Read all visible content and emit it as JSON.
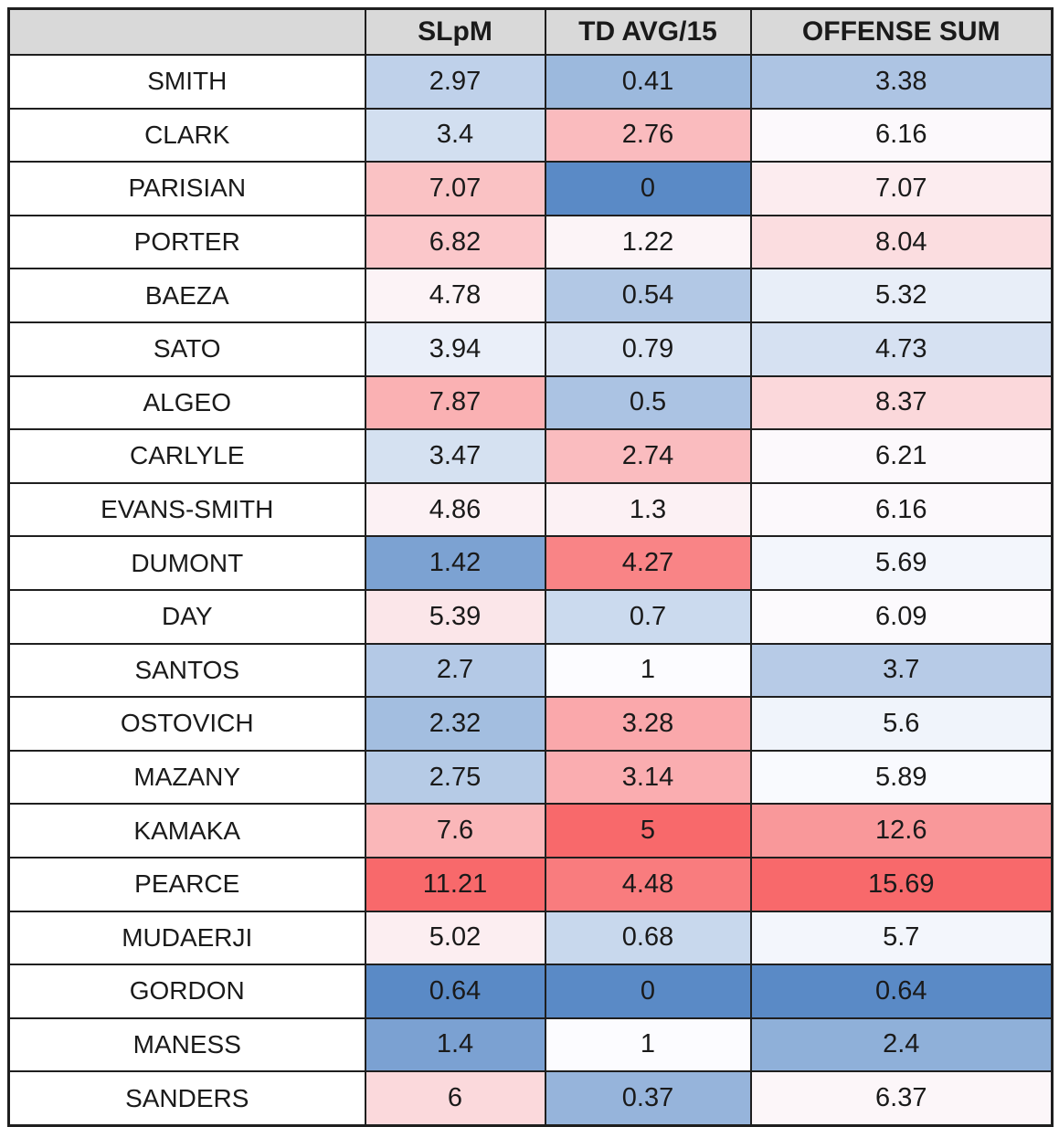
{
  "page": {
    "background": "#ffffff",
    "text_color": "#1a1a1a",
    "border_color": "#1f1f1f",
    "header_bg": "#d9d9d9"
  },
  "table": {
    "corner_label": ""
  },
  "chart_data": {
    "type": "table",
    "title": "",
    "columns": [
      "SLpM",
      "TD AVG/15",
      "OFFENSE SUM"
    ],
    "grid": "all black borders",
    "legend": "off",
    "color_scale": {
      "style": "3-color scale applied per column",
      "min_color": "#5A8AC6",
      "mid_color": "#FCFCFF",
      "max_color": "#F8696B"
    },
    "rows": [
      {
        "label": "SMITH",
        "values": [
          2.97,
          0.41,
          3.38
        ],
        "cell_colors": [
          "#BFD1EA",
          "#9CB9DD",
          "#ADC4E3"
        ]
      },
      {
        "label": "CLARK",
        "values": [
          3.4,
          2.76,
          6.16
        ],
        "cell_colors": [
          "#D2DFF0",
          "#FABBBE",
          "#FCF9FC"
        ]
      },
      {
        "label": "PARISIAN",
        "values": [
          7.07,
          0,
          7.07
        ],
        "cell_colors": [
          "#FAC2C4",
          "#5A8AC6",
          "#FCECEF"
        ]
      },
      {
        "label": "PORTER",
        "values": [
          6.82,
          1.22,
          8.04
        ],
        "cell_colors": [
          "#FBC7CA",
          "#FCF4F7",
          "#FBDDE0"
        ]
      },
      {
        "label": "BAEZA",
        "values": [
          4.78,
          0.54,
          5.32
        ],
        "cell_colors": [
          "#FCF3F6",
          "#B2C8E5",
          "#E8EEF8"
        ]
      },
      {
        "label": "SATO",
        "values": [
          3.94,
          0.79,
          4.73
        ],
        "cell_colors": [
          "#EAEFF9",
          "#DAE4F3",
          "#D6E1F2"
        ]
      },
      {
        "label": "ALGEO",
        "values": [
          7.87,
          0.5,
          8.37
        ],
        "cell_colors": [
          "#FAB1B3",
          "#ABC3E3",
          "#FBD8DB"
        ]
      },
      {
        "label": "CARLYLE",
        "values": [
          3.47,
          2.74,
          6.21
        ],
        "cell_colors": [
          "#D5E1F1",
          "#FABCBF",
          "#FCF9FC"
        ]
      },
      {
        "label": "EVANS-SMITH",
        "values": [
          4.86,
          1.3,
          6.16
        ],
        "cell_colors": [
          "#FCF1F4",
          "#FCF1F4",
          "#FCF9FC"
        ]
      },
      {
        "label": "DUMONT",
        "values": [
          1.42,
          4.27,
          5.69
        ],
        "cell_colors": [
          "#7CA2D2",
          "#F98486",
          "#F3F6FC"
        ]
      },
      {
        "label": "DAY",
        "values": [
          5.39,
          0.7,
          6.09
        ],
        "cell_colors": [
          "#FBE6E9",
          "#CBDAEE",
          "#FCFAFD"
        ]
      },
      {
        "label": "SANTOS",
        "values": [
          2.7,
          1,
          3.7
        ],
        "cell_colors": [
          "#B4C9E6",
          "#FCFCFF",
          "#B7CBE7"
        ]
      },
      {
        "label": "OSTOVICH",
        "values": [
          2.32,
          3.28,
          5.6
        ],
        "cell_colors": [
          "#A3BEE0",
          "#FAA8AB",
          "#F0F4FB"
        ]
      },
      {
        "label": "MAZANY",
        "values": [
          2.75,
          3.14,
          5.89
        ],
        "cell_colors": [
          "#B6CBE6",
          "#FAADB0",
          "#F9FAFE"
        ]
      },
      {
        "label": "KAMAKA",
        "values": [
          7.6,
          5,
          12.6
        ],
        "cell_colors": [
          "#FAB7B9",
          "#F8696B",
          "#F9989A"
        ]
      },
      {
        "label": "PEARCE",
        "values": [
          11.21,
          4.48,
          15.69
        ],
        "cell_colors": [
          "#F8696B",
          "#F97C7E",
          "#F8696B"
        ]
      },
      {
        "label": "MUDAERJI",
        "values": [
          5.02,
          0.68,
          5.7
        ],
        "cell_colors": [
          "#FCEEF1",
          "#C8D8ED",
          "#F3F6FC"
        ]
      },
      {
        "label": "GORDON",
        "values": [
          0.64,
          0,
          0.64
        ],
        "cell_colors": [
          "#5A8AC6",
          "#5A8AC6",
          "#5A8AC6"
        ]
      },
      {
        "label": "MANESS",
        "values": [
          1.4,
          1,
          2.4
        ],
        "cell_colors": [
          "#7BA1D2",
          "#FCFCFF",
          "#8FB0D9"
        ]
      },
      {
        "label": "SANDERS",
        "values": [
          6,
          0.37,
          6.37
        ],
        "cell_colors": [
          "#FBD9DC",
          "#96B4DB",
          "#FCF6F9"
        ]
      }
    ]
  }
}
